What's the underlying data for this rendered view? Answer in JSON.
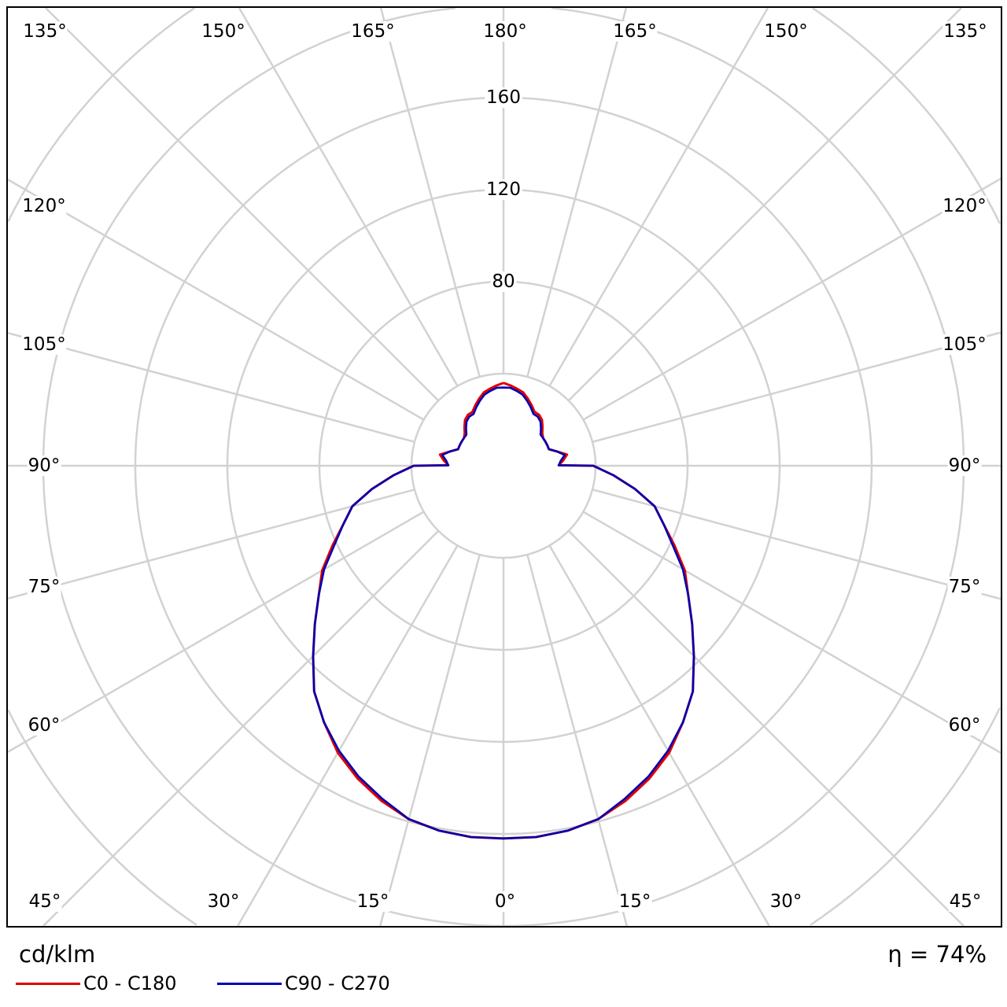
{
  "chart_data": {
    "type": "polar",
    "unit_label": "cd/klm",
    "efficiency_label": "η = 74%",
    "radial_ticks": [
      40,
      80,
      120,
      160,
      200,
      240
    ],
    "radial_tick_labels": [
      "80",
      "120",
      "160"
    ],
    "angle_labels": {
      "top": [
        "135°",
        "150°",
        "165°",
        "180°",
        "165°",
        "150°",
        "135°"
      ],
      "left": [
        "120°",
        "105°",
        "90°",
        "75°",
        "60°"
      ],
      "right": [
        "120°",
        "105°",
        "90°",
        "75°",
        "60°"
      ],
      "bottom": [
        "45°",
        "30°",
        "15°",
        "0°",
        "15°",
        "30°",
        "45°"
      ]
    },
    "grid": true,
    "angle_step_deg": 15,
    "series": [
      {
        "name": "C0 - C180",
        "color": "#e00000",
        "gamma": [
          0,
          5,
          10,
          15,
          20,
          25,
          30,
          35,
          40,
          45,
          50,
          55,
          60,
          65,
          70,
          75,
          80,
          85,
          90,
          90.5,
          95,
          100,
          105,
          110,
          115,
          120,
          125,
          130,
          135,
          140,
          145,
          150,
          155,
          160,
          165,
          170,
          175,
          180
        ],
        "values": [
          162,
          162,
          161,
          159,
          155,
          150,
          144,
          136,
          128,
          117,
          107,
          98,
          91,
          82,
          74,
          68,
          58,
          48,
          39,
          24,
          26,
          28,
          24,
          21,
          21,
          21,
          21,
          22,
          24,
          26,
          27,
          27,
          29,
          31,
          33,
          34,
          35,
          36
        ]
      },
      {
        "name": "C90 - C270",
        "color": "#0000b4",
        "gamma": [
          0,
          5,
          10,
          15,
          20,
          25,
          30,
          35,
          40,
          45,
          50,
          55,
          60,
          65,
          70,
          75,
          80,
          85,
          90,
          90.5,
          95,
          100,
          105,
          110,
          115,
          120,
          125,
          130,
          135,
          140,
          145,
          150,
          155,
          160,
          165,
          170,
          175,
          180
        ],
        "values": [
          162,
          162,
          161,
          159,
          154,
          149,
          143,
          136,
          128,
          117,
          107,
          98,
          90,
          81,
          74,
          68,
          58,
          48,
          39,
          24,
          25,
          27,
          24,
          21,
          21,
          21,
          21,
          21,
          23,
          25,
          26,
          26,
          28,
          30,
          32,
          33,
          34,
          34
        ]
      }
    ]
  }
}
